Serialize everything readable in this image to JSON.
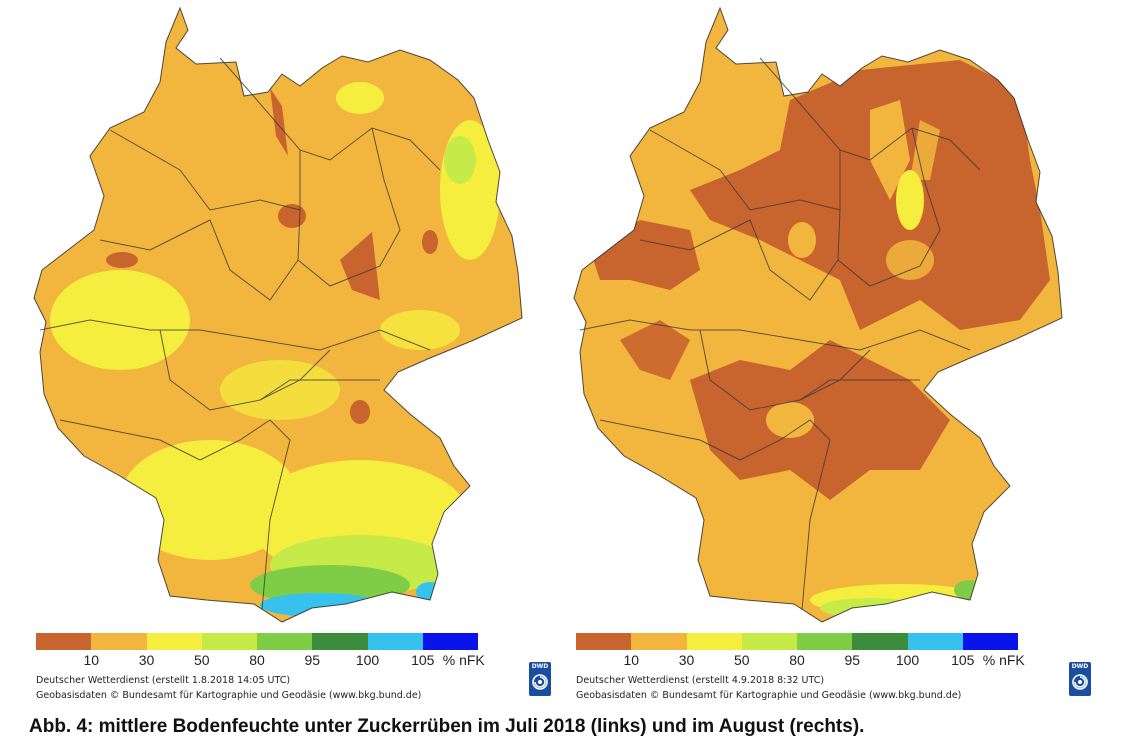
{
  "legend": {
    "colors": [
      "#c8642d",
      "#f2b63e",
      "#f6ee3f",
      "#c6eb49",
      "#7fcc47",
      "#3c8c3c",
      "#37c2ee",
      "#0a14ea"
    ],
    "values": [
      "10",
      "30",
      "50",
      "80",
      "95",
      "100",
      "105"
    ],
    "unit": "% nFK"
  },
  "maps": [
    {
      "label": "Juli 2018 (links)",
      "base_color": "#f2b63e",
      "credit_line1": "Deutscher Wetterdienst (erstellt 1.8.2018 14:05 UTC)",
      "credit_line2": "Geobasisdaten © Bundesamt für Kartographie und Geodäsie (www.bkg.bund.de)"
    },
    {
      "label": "August (rechts)",
      "base_color": "#f2b63e",
      "credit_line1": "Deutscher Wetterdienst (erstellt 4.9.2018 8:32 UTC)",
      "credit_line2": "Geobasisdaten © Bundesamt für Kartographie und Geodäsie (www.bkg.bund.de)"
    }
  ],
  "logo_text": "DWD",
  "caption": "Abb. 4: mittlere Bodenfeuchte unter Zuckerrüben im Juli 2018 (links) und im August (rechts)."
}
